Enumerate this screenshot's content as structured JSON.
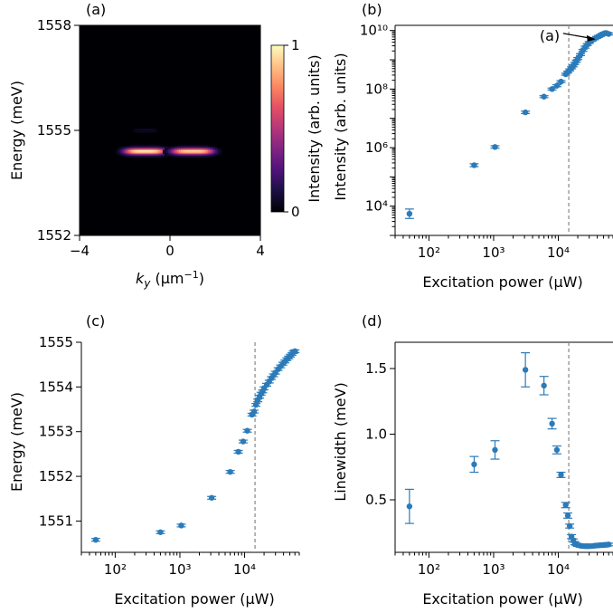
{
  "chart_data": [
    {
      "panel": "(a)",
      "type": "heatmap",
      "xlabel": "k_y (μm⁻¹)",
      "ylabel": "Energy (meV)",
      "xlim": [
        -4,
        4
      ],
      "ylim": [
        1552,
        1558
      ],
      "xticks": [
        "−4",
        "0",
        "4"
      ],
      "yticks": [
        "1552",
        "1555",
        "1558"
      ],
      "colorbar": {
        "label": "Intensity (arb. units)",
        "ticks": [
          "0",
          "1"
        ],
        "colormap": "magma",
        "range": [
          0,
          1
        ]
      },
      "blobs": [
        {
          "kx_center": -1.1,
          "kx_halfwidth": 1.0,
          "energy": 1554.4,
          "energy_halfwidth": 0.12,
          "peak": 1.0
        },
        {
          "kx_center": 1.0,
          "kx_halfwidth": 1.0,
          "energy": 1554.4,
          "energy_halfwidth": 0.12,
          "peak": 0.95
        },
        {
          "kx_center": -1.1,
          "kx_halfwidth": 0.6,
          "energy": 1555.0,
          "energy_halfwidth": 0.06,
          "peak": 0.08
        }
      ]
    },
    {
      "panel": "(b)",
      "type": "scatter",
      "xscale": "log",
      "yscale": "log",
      "xlabel": "Excitation power (μW)",
      "ylabel": "Intensity (arb. units)",
      "xlim": [
        30,
        70000
      ],
      "ylim": [
        1000,
        15000000000
      ],
      "xticks": [
        100,
        1000,
        10000
      ],
      "yticks": [
        10000,
        1000000,
        100000000,
        10000000000
      ],
      "threshold_x": 14500,
      "annotation": {
        "text": "(a)",
        "points_to": [
          43000,
          6000000000
        ]
      },
      "color": "#2b7bba",
      "x": [
        50,
        500,
        1050,
        3100,
        6000,
        8000,
        9500,
        11000,
        13000,
        14000,
        15000,
        16000,
        17000,
        18000,
        19000,
        20000,
        22000,
        24000,
        26000,
        28000,
        30000,
        33000,
        36000,
        39000,
        42000,
        45000,
        48000,
        51000,
        54000,
        57000,
        60000
      ],
      "y": [
        5500,
        250000,
        1050000,
        16000000,
        55000000,
        100000000,
        130000000,
        180000000,
        320000000,
        380000000,
        450000000,
        530000000,
        620000000,
        750000000,
        900000000,
        1100000000,
        1500000000,
        2100000000,
        2700000000,
        3300000000,
        3900000000,
        4600000000,
        5200000000,
        5800000000,
        6300000000,
        6800000000,
        7400000000,
        8000000000,
        8200000000,
        8000000000,
        7600000000
      ],
      "yerr_factor": [
        1.45,
        1.12,
        1.1,
        1.1,
        1.08,
        1.08,
        1.08,
        1.08,
        1.08,
        1.08,
        1.08,
        1.08,
        1.08,
        1.08,
        1.08,
        1.08,
        1.08,
        1.08,
        1.08,
        1.08,
        1.08,
        1.08,
        1.08,
        1.08,
        1.08,
        1.08,
        1.08,
        1.08,
        1.08,
        1.08,
        1.08
      ]
    },
    {
      "panel": "(c)",
      "type": "scatter",
      "xscale": "log",
      "xlabel": "Excitation power (μW)",
      "ylabel": "Energy (meV)",
      "xlim": [
        30,
        70000
      ],
      "ylim": [
        1550.3,
        1555.0
      ],
      "xticks": [
        100,
        1000,
        10000
      ],
      "yticks": [
        1551,
        1552,
        1553,
        1554,
        1555
      ],
      "threshold_x": 14500,
      "color": "#2b7bba",
      "x": [
        50,
        500,
        1050,
        3100,
        6000,
        8000,
        9500,
        11000,
        13000,
        14000,
        15000,
        16000,
        17000,
        18000,
        19000,
        20000,
        22000,
        24000,
        26000,
        28000,
        30000,
        33000,
        36000,
        39000,
        42000,
        45000,
        48000,
        51000,
        54000,
        57000,
        60000
      ],
      "y": [
        1550.58,
        1550.75,
        1550.9,
        1551.52,
        1552.1,
        1552.55,
        1552.78,
        1553.02,
        1553.38,
        1553.45,
        1553.6,
        1553.7,
        1553.78,
        1553.85,
        1553.9,
        1553.97,
        1554.05,
        1554.12,
        1554.2,
        1554.26,
        1554.32,
        1554.4,
        1554.46,
        1554.52,
        1554.57,
        1554.62,
        1554.66,
        1554.7,
        1554.74,
        1554.78,
        1554.8
      ]
    },
    {
      "panel": "(d)",
      "type": "scatter",
      "xscale": "log",
      "xlabel": "Excitation power (μW)",
      "ylabel": "Linewidth (meV)",
      "xlim": [
        30,
        70000
      ],
      "ylim": [
        0.1,
        1.7
      ],
      "xticks": [
        100,
        1000,
        10000
      ],
      "yticks": [
        0.5,
        1.0,
        1.5
      ],
      "ytick_labels": [
        "0.5",
        "1.0",
        "1.5"
      ],
      "threshold_x": 14500,
      "color": "#2b7bba",
      "x": [
        50,
        500,
        1050,
        3100,
        6000,
        8000,
        9500,
        11000,
        13000,
        14000,
        15000,
        16000,
        17000,
        18000,
        19000,
        20000,
        22000,
        24000,
        26000,
        28000,
        30000,
        33000,
        36000,
        39000,
        42000,
        45000,
        48000,
        51000,
        54000,
        57000,
        60000
      ],
      "y": [
        0.45,
        0.77,
        0.88,
        1.49,
        1.37,
        1.08,
        0.88,
        0.69,
        0.46,
        0.38,
        0.3,
        0.22,
        0.19,
        0.17,
        0.16,
        0.155,
        0.15,
        0.148,
        0.147,
        0.147,
        0.147,
        0.148,
        0.15,
        0.152,
        0.153,
        0.155,
        0.155,
        0.156,
        0.157,
        0.158,
        0.16
      ],
      "yerr": [
        0.13,
        0.06,
        0.07,
        0.13,
        0.07,
        0.04,
        0.03,
        0.02,
        0.02,
        0.02,
        0.015,
        0.015,
        0.012,
        0.012,
        0.01,
        0.01,
        0.01,
        0.01,
        0.01,
        0.01,
        0.01,
        0.01,
        0.01,
        0.01,
        0.01,
        0.01,
        0.01,
        0.01,
        0.01,
        0.01,
        0.01
      ]
    }
  ]
}
